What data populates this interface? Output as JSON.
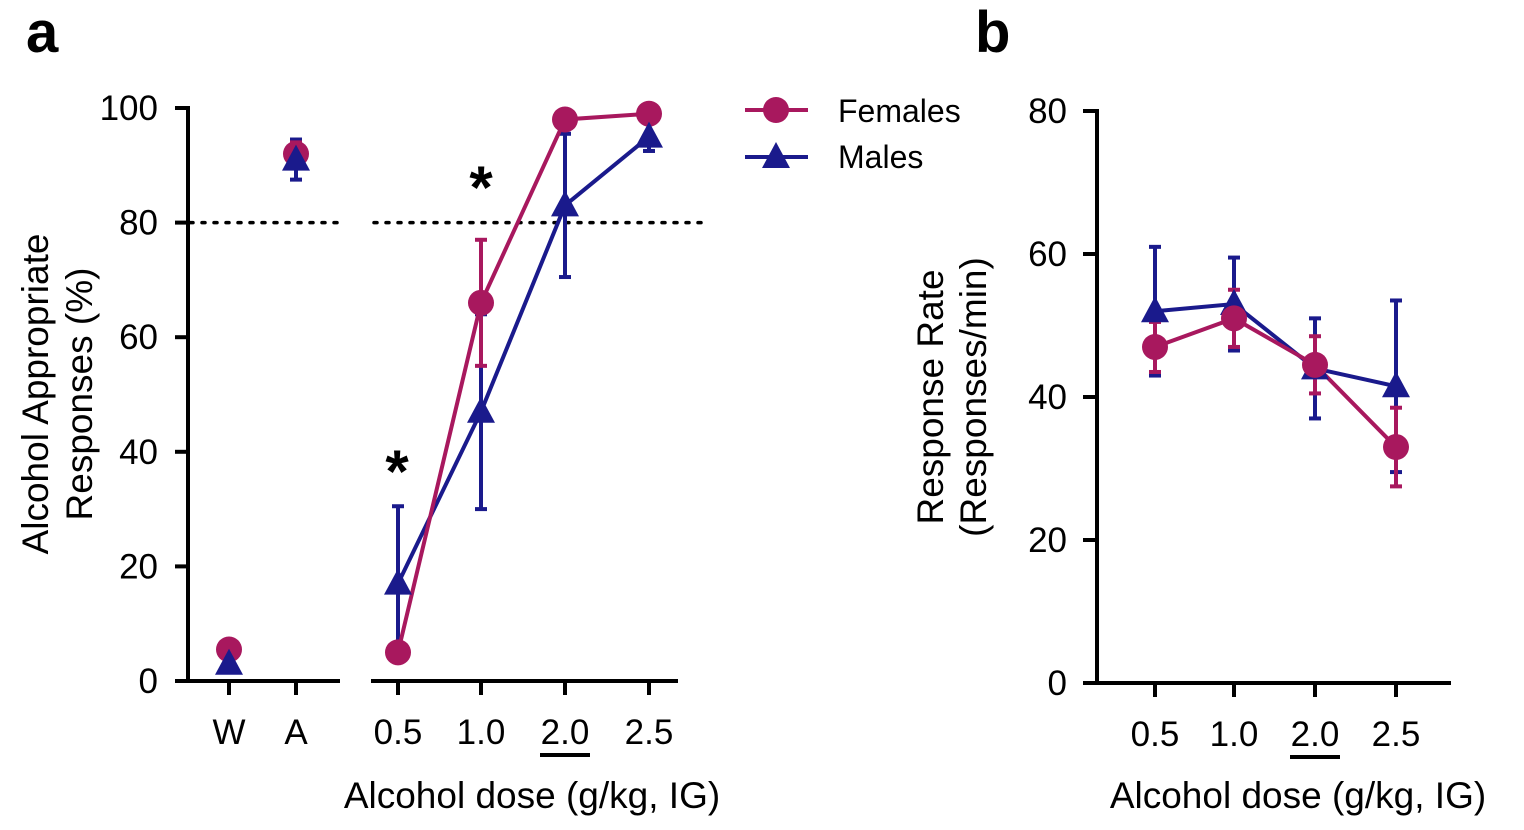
{
  "figure": {
    "panels": [
      "a",
      "b"
    ],
    "legend": [
      {
        "label": "Females",
        "marker": "circle",
        "color": "#A8185E"
      },
      {
        "label": "Males",
        "marker": "triangle",
        "color": "#1A1A8C"
      }
    ]
  },
  "chart_data": [
    {
      "panel": "a",
      "type": "line",
      "ylabel": [
        "Alcohol Appropriate",
        "Responses (%)"
      ],
      "xlabel": "Alcohol dose (g/kg, IG)",
      "ylim": [
        0,
        100
      ],
      "yticks": [
        "0",
        "20",
        "40",
        "60",
        "80",
        "100"
      ],
      "reference_line": 80,
      "control_categories": [
        "W",
        "A"
      ],
      "dose_categories": [
        "0.5",
        "1.0",
        "2.0",
        "2.5"
      ],
      "underlined_category": "2.0",
      "legend_placement": "top-right",
      "significance": [
        {
          "category": "0.5",
          "label": "*"
        },
        {
          "category": "1.0",
          "label": "*"
        }
      ],
      "series": [
        {
          "name": "Females",
          "color": "#A8185E",
          "marker": "circle",
          "controls": [
            {
              "value": 5.5,
              "err": 0.5
            },
            {
              "value": 92,
              "err": 2
            }
          ],
          "doses": [
            {
              "value": 5,
              "err": 0.5
            },
            {
              "value": 66,
              "err": 11
            },
            {
              "value": 98,
              "err": 0.5
            },
            {
              "value": 99,
              "err": 0.5
            }
          ]
        },
        {
          "name": "Males",
          "color": "#1A1A8C",
          "marker": "triangle",
          "controls": [
            {
              "value": 3,
              "err": 0.5
            },
            {
              "value": 91,
              "err": 3.5
            }
          ],
          "doses": [
            {
              "value": 17,
              "err": 13.5
            },
            {
              "value": 47,
              "err": 17
            },
            {
              "value": 83,
              "err": 12.5
            },
            {
              "value": 95,
              "err": 2.5
            }
          ]
        }
      ]
    },
    {
      "panel": "b",
      "type": "line",
      "ylabel": [
        "Response Rate",
        "(Responses/min)"
      ],
      "xlabel": "Alcohol dose (g/kg, IG)",
      "ylim": [
        0,
        80
      ],
      "yticks": [
        "0",
        "20",
        "40",
        "60",
        "80"
      ],
      "categories": [
        "0.5",
        "1.0",
        "2.0",
        "2.5"
      ],
      "underlined_category": "2.0",
      "series": [
        {
          "name": "Females",
          "color": "#A8185E",
          "marker": "circle",
          "values": [
            {
              "value": 47,
              "err": 3.5
            },
            {
              "value": 51,
              "err": 4
            },
            {
              "value": 44.5,
              "err": 4
            },
            {
              "value": 33,
              "err": 5.5
            }
          ]
        },
        {
          "name": "Males",
          "color": "#1A1A8C",
          "marker": "triangle",
          "values": [
            {
              "value": 52,
              "err": 9
            },
            {
              "value": 53,
              "err": 6.5
            },
            {
              "value": 44,
              "err": 7
            },
            {
              "value": 41.5,
              "err": 12
            }
          ]
        }
      ]
    }
  ]
}
